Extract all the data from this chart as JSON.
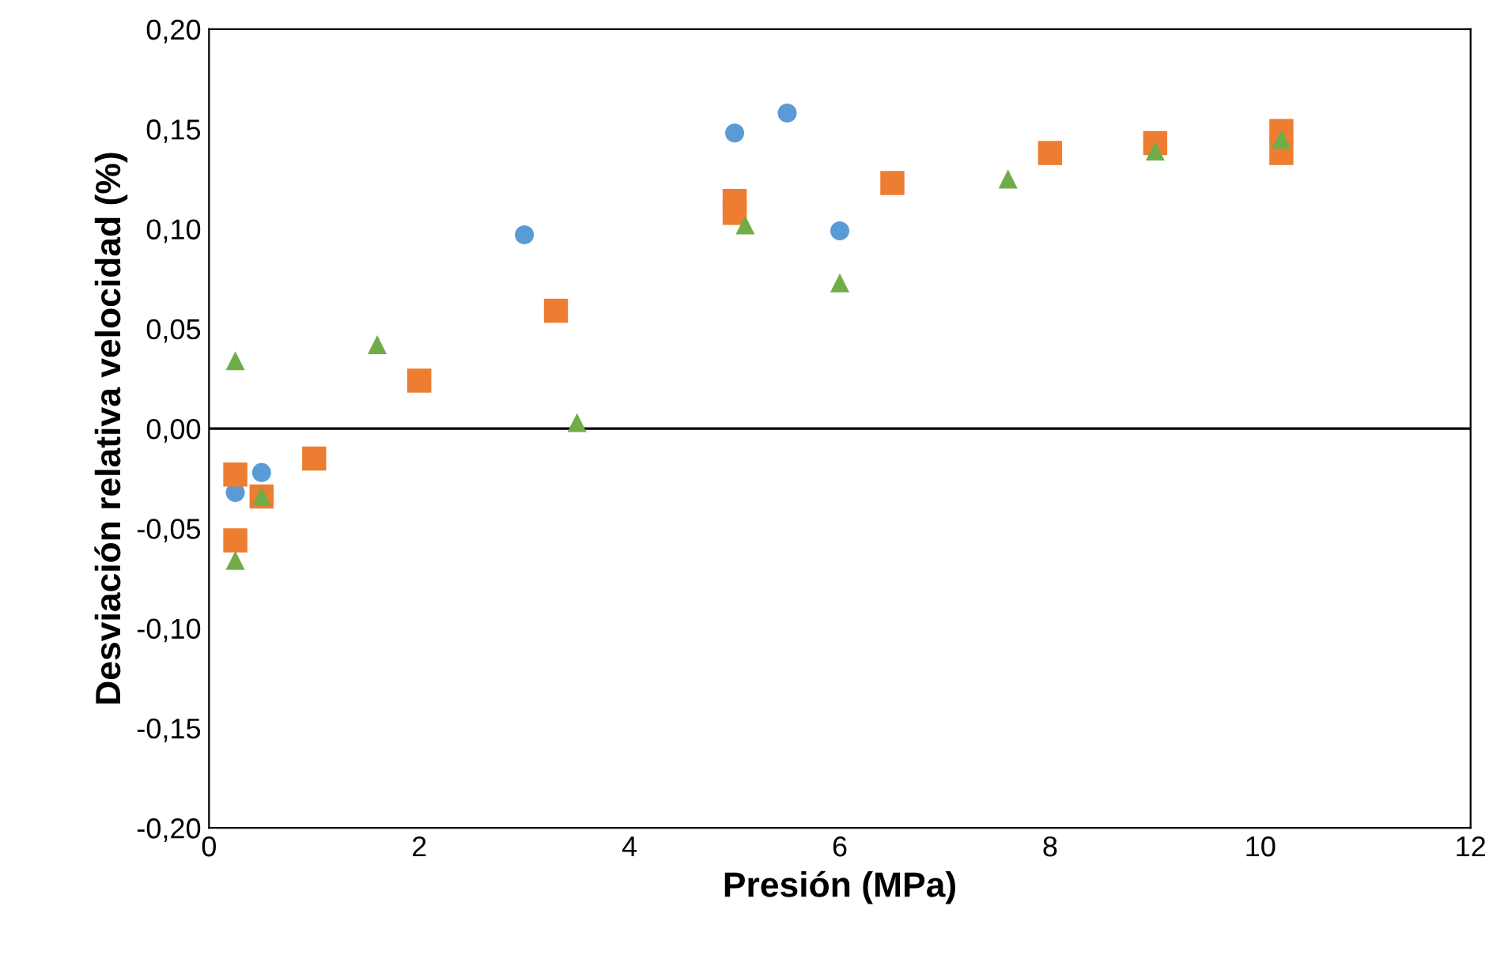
{
  "chart_data": {
    "type": "scatter",
    "xlabel": "Presión (MPa)",
    "ylabel": "Desviación relativa velocidad (%)",
    "series": [
      {
        "color": "#5b9bd5",
        "marker": "circle",
        "x": [
          0.25,
          0.5,
          3,
          5,
          5.5,
          6
        ],
        "values": [
          -0.032,
          -0.022,
          0.097,
          0.148,
          0.158,
          0.099
        ]
      },
      {
        "color": "#ed7d31",
        "marker": "square",
        "x": [
          0.25,
          0.25,
          0.5,
          1,
          2,
          3.3,
          5,
          5,
          6.5,
          8,
          9,
          10.2,
          10.2
        ],
        "values": [
          -0.023,
          -0.056,
          -0.034,
          -0.015,
          0.024,
          0.059,
          0.114,
          0.108,
          0.123,
          0.138,
          0.143,
          0.149,
          0.138
        ]
      },
      {
        "color": "#70ad47",
        "marker": "triangle",
        "x": [
          0.25,
          0.25,
          0.5,
          1.6,
          3.5,
          5.1,
          6,
          7.6,
          9,
          10.2
        ],
        "values": [
          0.034,
          -0.066,
          -0.034,
          0.042,
          0.003,
          0.102,
          0.073,
          0.125,
          0.139,
          0.145
        ]
      }
    ],
    "xlim": [
      0,
      12
    ],
    "xticks": [
      0,
      2,
      4,
      6,
      8,
      10,
      12
    ],
    "ylim": [
      -0.2,
      0.2
    ],
    "yticks": [
      {
        "value": -0.2,
        "label": "-0,20"
      },
      {
        "value": -0.15,
        "label": "-0,15"
      },
      {
        "value": -0.1,
        "label": "-0,10"
      },
      {
        "value": -0.05,
        "label": "-0,05"
      },
      {
        "value": 0,
        "label": "0,00"
      },
      {
        "value": 0.05,
        "label": "0,05"
      },
      {
        "value": 0.1,
        "label": "0,10"
      },
      {
        "value": 0.15,
        "label": "0,15"
      },
      {
        "value": 0.2,
        "label": "0,20"
      }
    ],
    "ref_lines": [
      {
        "axis": "y",
        "value": 0,
        "color": "#000000"
      }
    ],
    "grid": false,
    "legend": false
  }
}
